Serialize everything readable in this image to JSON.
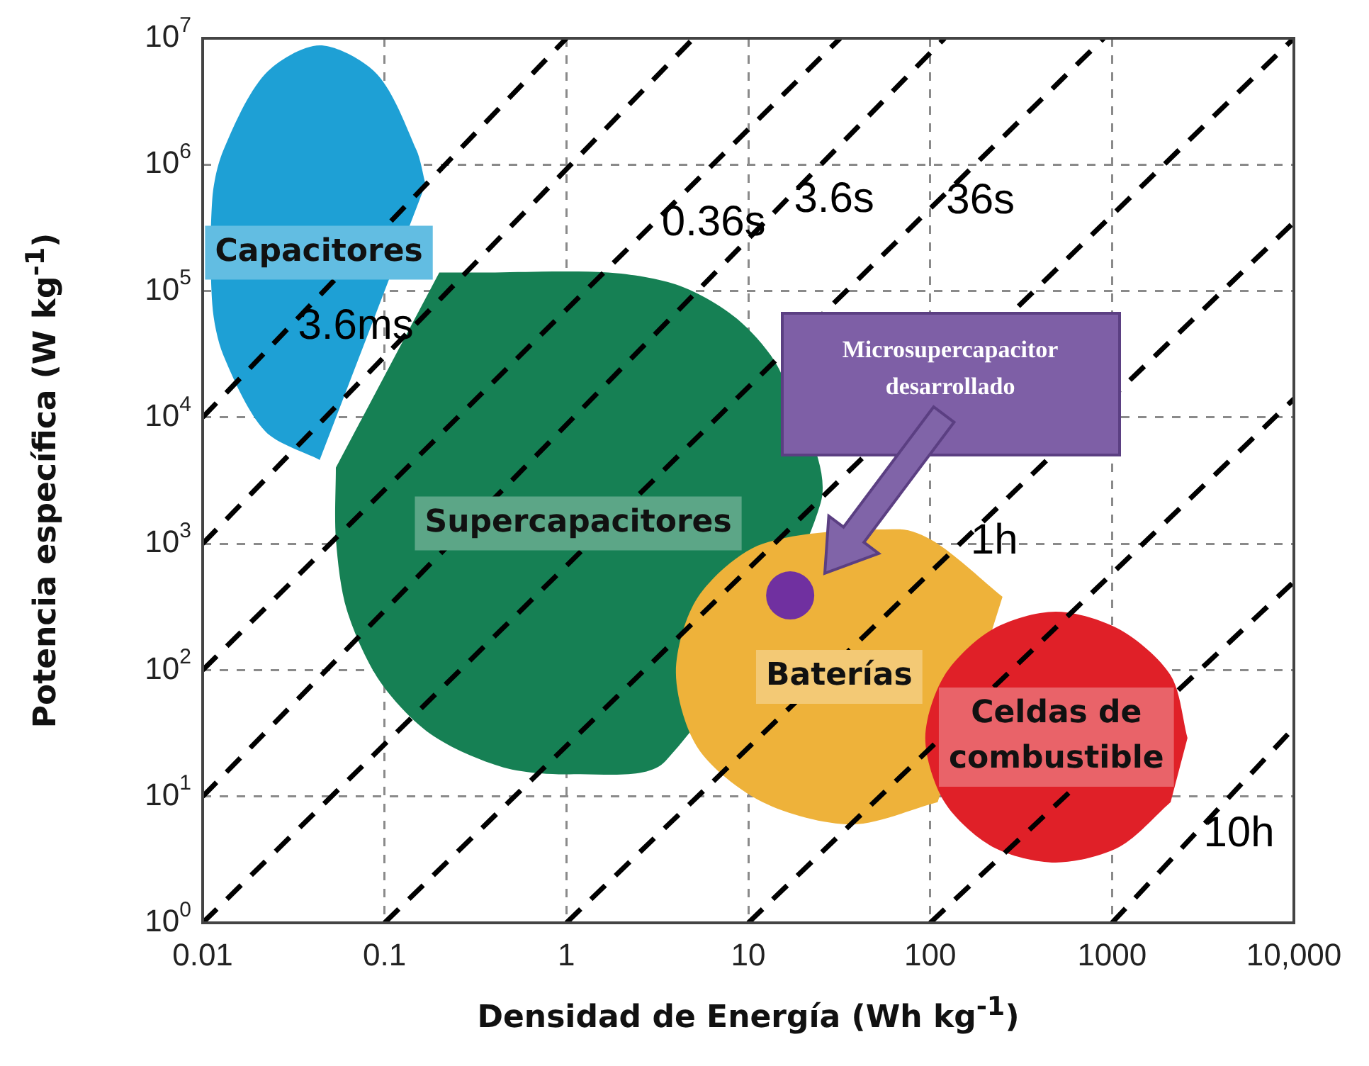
{
  "chart_data": {
    "type": "line",
    "xlabel": "Densidad de Energía (Wh kg$^{-1}$)",
    "ylabel": "Potencia específica (W kg$^{-1}$)",
    "log": "xy",
    "grid": true,
    "legend": false,
    "xlim": [
      0.01,
      10000
    ],
    "ylim": [
      1,
      10000000
    ],
    "xticks": [
      0.01,
      0.1,
      1,
      10,
      100,
      1000,
      {
        "value": 10000,
        "label": "10,000"
      }
    ],
    "yticks": [
      {
        "value": 1,
        "label": "10$^{0}$"
      },
      {
        "value": 10,
        "label": "10$^{1}$"
      },
      {
        "value": 100,
        "label": "10$^{2}$"
      },
      {
        "value": 1000,
        "label": "10$^{3}$"
      },
      {
        "value": 10000,
        "label": "10$^{4}$"
      },
      {
        "value": 100000,
        "label": "10$^{5}$"
      },
      {
        "value": 1000000,
        "label": "10$^{6}$"
      },
      {
        "value": 10000000,
        "label": "10$^{7}$"
      }
    ],
    "series": [
      {
        "type": "area",
        "name": "Capacitores",
        "color": "#1ea0d5",
        "x": [
          0.168,
          0.15,
          0.091,
          0.044,
          0.022,
          0.013,
          0.0113,
          0.0113,
          0.013,
          0.022,
          0.044
        ],
        "values": [
          700000,
          1300000,
          5200000,
          8800000,
          5200000,
          1300000,
          540000,
          78000,
          31000,
          7800,
          4600
        ]
      },
      {
        "type": "area",
        "name": "Supercapacitores",
        "color": "#168054",
        "x": [
          0.2,
          0.34,
          1.7,
          4.2,
          8.7,
          15,
          25,
          3.5,
          1.1,
          0.45,
          0.18,
          0.094,
          0.062,
          0.054,
          0.054
        ],
        "values": [
          140000,
          140000,
          140000,
          110000,
          60000,
          23000,
          2100,
          19,
          15,
          17,
          31,
          82,
          300,
          1100,
          4000
        ]
      },
      {
        "type": "area",
        "name": "Baterías",
        "color": "#eeb23a",
        "x": [
          250,
          110,
          68,
          12,
          5.3,
          4,
          5.3,
          12,
          37,
          110
        ],
        "values": [
          380,
          1000,
          1300,
          1000,
          380,
          96,
          24,
          9,
          6,
          9
        ]
      },
      {
        "type": "area",
        "name": "Celdas de combustible",
        "color": "#e02028",
        "x": [
          2600,
          2100,
          1100,
          490,
          220,
          120,
          94,
          120,
          220,
          490,
          1100,
          2100
        ],
        "values": [
          29,
          91,
          210,
          290,
          210,
          91,
          29,
          9,
          4,
          3,
          4,
          9
        ]
      },
      {
        "type": "line",
        "line_style": "dashed",
        "color": "#000000",
        "x": [
          0.01,
          1
        ],
        "values": [
          10000,
          10000000
        ]
      },
      {
        "type": "line",
        "line_style": "dashed",
        "color": "#000000",
        "x": [
          0.01,
          5
        ],
        "values": [
          1000,
          10000000
        ]
      },
      {
        "type": "line",
        "line_style": "dashed",
        "color": "#000000",
        "x": [
          0.01,
          32
        ],
        "values": [
          100,
          10000000
        ]
      },
      {
        "type": "line",
        "line_style": "dashed",
        "color": "#000000",
        "x": [
          0.01,
          120
        ],
        "values": [
          10,
          10000000
        ]
      },
      {
        "type": "line",
        "line_style": "dashed",
        "color": "#000000",
        "x": [
          0.01,
          900
        ],
        "values": [
          1,
          10000000
        ]
      },
      {
        "type": "line",
        "line_style": "dashed",
        "color": "#000000",
        "x": [
          0.1,
          10000
        ],
        "values": [
          1,
          10000000
        ]
      },
      {
        "type": "line",
        "line_style": "dashed",
        "color": "#000000",
        "x": [
          1,
          10000
        ],
        "values": [
          1,
          350000
        ]
      },
      {
        "type": "line",
        "line_style": "dashed",
        "color": "#000000",
        "x": [
          10,
          10000
        ],
        "values": [
          1,
          14000
        ]
      },
      {
        "type": "line",
        "line_style": "dashed",
        "color": "#000000",
        "x": [
          100,
          10000
        ],
        "values": [
          1,
          500
        ]
      },
      {
        "type": "line",
        "line_style": "dashed",
        "color": "#000000",
        "x": [
          1000,
          10000
        ],
        "values": [
          1,
          35
        ]
      },
      {
        "type": "scatter",
        "marker": "circle",
        "color": "#7030a0",
        "x": [
          17
        ],
        "values": [
          390
        ]
      }
    ],
    "annotations": [
      {
        "text": "3.6ms",
        "x": 0.03,
        "y": 52000
      },
      {
        "text": "0.36s",
        "x": 3,
        "y": 340000
      },
      {
        "text": "3.6s",
        "x": 16,
        "y": 520000
      },
      {
        "text": "36s",
        "x": 110,
        "y": 510000
      },
      {
        "text": "1h",
        "x": 150,
        "y": 1040
      },
      {
        "text": "10h",
        "x": 2860,
        "y": 5
      },
      "Microsupercapacitor desarrollado"
    ]
  }
}
